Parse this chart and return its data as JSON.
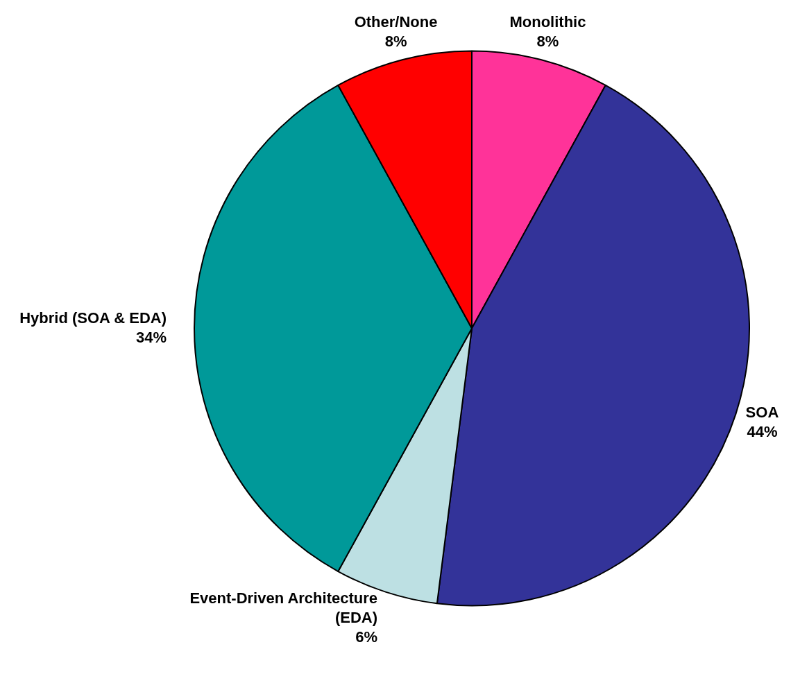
{
  "chart_data": {
    "type": "pie",
    "categories": [
      "Monolithic",
      "SOA",
      "Event-Driven Architecture (EDA)",
      "Hybrid (SOA & EDA)",
      "Other/None"
    ],
    "values": [
      8,
      44,
      6,
      34,
      8
    ],
    "colors": [
      "#ff3399",
      "#333399",
      "#bde0e3",
      "#009999",
      "#ff0000"
    ],
    "value_labels": [
      "8%",
      "44%",
      "6%",
      "34%",
      "8%"
    ],
    "legend": false
  }
}
